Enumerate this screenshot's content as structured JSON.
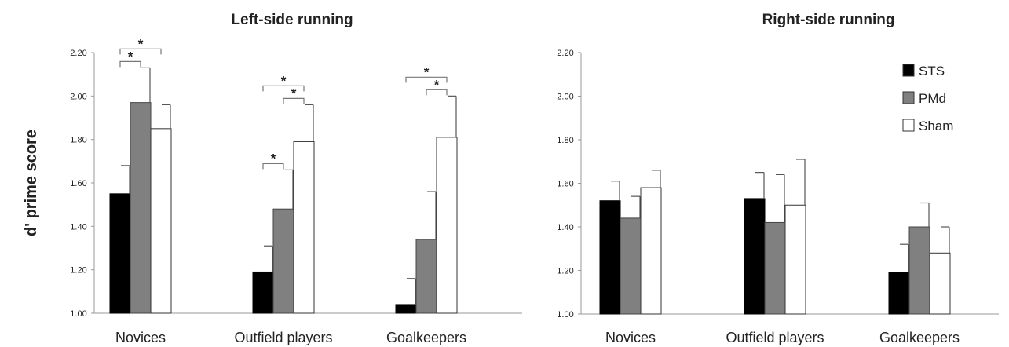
{
  "chart_data": [
    {
      "type": "bar",
      "title": "Left-side running",
      "ylabel": "d' prime score",
      "ylim": [
        1.0,
        2.2
      ],
      "yticks": [
        "1.00",
        "1.20",
        "1.40",
        "1.60",
        "1.80",
        "2.00",
        "2.20"
      ],
      "categories": [
        "Novices",
        "Outfield players",
        "Goalkeepers"
      ],
      "series": [
        {
          "name": "STS",
          "color": "#000000",
          "values": [
            1.55,
            1.19,
            1.04
          ],
          "errors": [
            0.13,
            0.12,
            0.12
          ]
        },
        {
          "name": "PMd",
          "color": "#808080",
          "values": [
            1.97,
            1.48,
            1.34
          ],
          "errors": [
            0.16,
            0.18,
            0.22
          ]
        },
        {
          "name": "Sham",
          "color": "#ffffff",
          "values": [
            1.85,
            1.79,
            1.81
          ],
          "errors": [
            0.11,
            0.17,
            0.19
          ]
        }
      ],
      "significance": [
        {
          "category": 0,
          "from": 0,
          "to": 1,
          "level": 0,
          "label": "*"
        },
        {
          "category": 0,
          "from": 0,
          "to": 2,
          "level": 1,
          "label": "*"
        },
        {
          "category": 1,
          "from": 0,
          "to": 1,
          "level": 0,
          "label": "*"
        },
        {
          "category": 1,
          "from": 1,
          "to": 2,
          "level": 0,
          "label": "*"
        },
        {
          "category": 1,
          "from": 0,
          "to": 2,
          "level": 1,
          "label": "*"
        },
        {
          "category": 2,
          "from": 1,
          "to": 2,
          "level": 0,
          "label": "*"
        },
        {
          "category": 2,
          "from": 0,
          "to": 2,
          "level": 1,
          "label": "*"
        }
      ]
    },
    {
      "type": "bar",
      "title": "Right-side running",
      "ylim": [
        1.0,
        2.2
      ],
      "yticks": [
        "1.00",
        "1.20",
        "1.40",
        "1.60",
        "1.80",
        "2.00",
        "2.20"
      ],
      "categories": [
        "Novices",
        "Outfield players",
        "Goalkeepers"
      ],
      "legend": "top-right",
      "series": [
        {
          "name": "STS",
          "color": "#000000",
          "values": [
            1.52,
            1.53,
            1.19
          ],
          "errors": [
            0.09,
            0.12,
            0.13
          ]
        },
        {
          "name": "PMd",
          "color": "#808080",
          "values": [
            1.44,
            1.42,
            1.4
          ],
          "errors": [
            0.1,
            0.22,
            0.11
          ]
        },
        {
          "name": "Sham",
          "color": "#ffffff",
          "values": [
            1.58,
            1.5,
            1.28
          ],
          "errors": [
            0.08,
            0.21,
            0.12
          ]
        }
      ]
    }
  ]
}
